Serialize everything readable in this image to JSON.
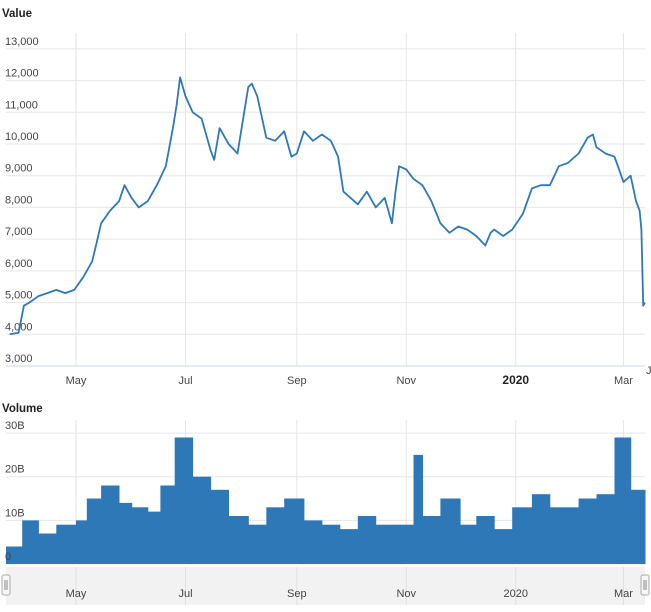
{
  "chart_data": [
    {
      "type": "line",
      "title": "Value",
      "ylim": [
        3000,
        13500
      ],
      "y_ticks": [
        "3,000",
        "4,000",
        "5,000",
        "6,000",
        "7,000",
        "8,000",
        "9,000",
        "10,000",
        "11,000",
        "12,000",
        "13,000"
      ],
      "x_ticks": [
        {
          "label": "May",
          "date": "2019-05-01"
        },
        {
          "label": "Jul",
          "date": "2019-07-01"
        },
        {
          "label": "Sep",
          "date": "2019-09-01"
        },
        {
          "label": "Nov",
          "date": "2019-11-01"
        },
        {
          "label": "2020",
          "date": "2020-01-01",
          "bold": true
        },
        {
          "label": "Mar",
          "date": "2020-03-01"
        }
      ],
      "xlim": [
        "2019-03-23",
        "2020-03-13"
      ],
      "x": [
        "2019-03-25",
        "2019-03-30",
        "2019-04-02",
        "2019-04-05",
        "2019-04-10",
        "2019-04-15",
        "2019-04-20",
        "2019-04-25",
        "2019-04-30",
        "2019-05-05",
        "2019-05-10",
        "2019-05-13",
        "2019-05-15",
        "2019-05-20",
        "2019-05-25",
        "2019-05-28",
        "2019-06-01",
        "2019-06-05",
        "2019-06-10",
        "2019-06-15",
        "2019-06-20",
        "2019-06-24",
        "2019-06-26",
        "2019-06-28",
        "2019-07-01",
        "2019-07-05",
        "2019-07-10",
        "2019-07-15",
        "2019-07-17",
        "2019-07-20",
        "2019-07-25",
        "2019-07-30",
        "2019-08-05",
        "2019-08-07",
        "2019-08-10",
        "2019-08-15",
        "2019-08-20",
        "2019-08-25",
        "2019-08-29",
        "2019-09-01",
        "2019-09-05",
        "2019-09-10",
        "2019-09-15",
        "2019-09-20",
        "2019-09-24",
        "2019-09-27",
        "2019-10-01",
        "2019-10-05",
        "2019-10-10",
        "2019-10-15",
        "2019-10-20",
        "2019-10-24",
        "2019-10-26",
        "2019-10-28",
        "2019-11-01",
        "2019-11-05",
        "2019-11-10",
        "2019-11-15",
        "2019-11-20",
        "2019-11-25",
        "2019-11-30",
        "2019-12-05",
        "2019-12-10",
        "2019-12-15",
        "2019-12-18",
        "2019-12-20",
        "2019-12-25",
        "2019-12-30",
        "2020-01-05",
        "2020-01-10",
        "2020-01-15",
        "2020-01-20",
        "2020-01-25",
        "2020-01-30",
        "2020-02-05",
        "2020-02-10",
        "2020-02-13",
        "2020-02-15",
        "2020-02-20",
        "2020-02-25",
        "2020-03-01",
        "2020-03-05",
        "2020-03-08",
        "2020-03-10",
        "2020-03-11",
        "2020-03-12",
        "2020-03-13"
      ],
      "series": [
        {
          "values": [
            4000,
            4050,
            4900,
            5000,
            5200,
            5300,
            5400,
            5300,
            5400,
            5800,
            6300,
            7000,
            7500,
            7900,
            8200,
            8700,
            8300,
            8000,
            8200,
            8700,
            9300,
            10500,
            11200,
            12100,
            11500,
            11000,
            10800,
            9800,
            9500,
            10500,
            10000,
            9700,
            11800,
            11900,
            11500,
            10200,
            10100,
            10400,
            9600,
            9700,
            10400,
            10100,
            10300,
            10100,
            9600,
            8500,
            8300,
            8100,
            8500,
            8000,
            8300,
            7500,
            8500,
            9300,
            9200,
            8900,
            8700,
            8200,
            7500,
            7200,
            7400,
            7300,
            7100,
            6800,
            7200,
            7300,
            7100,
            7300,
            7800,
            8600,
            8700,
            8700,
            9300,
            9400,
            9700,
            10200,
            10300,
            9900,
            9700,
            9600,
            8800,
            9000,
            8200,
            7900,
            7300,
            4900,
            5000
          ]
        }
      ]
    },
    {
      "type": "bar",
      "title": "Volume",
      "ylim": [
        0,
        33
      ],
      "y_ticks": [
        "0",
        "10B",
        "20B",
        "30B"
      ],
      "x_ticks": [
        {
          "label": "May",
          "date": "2019-05-01"
        },
        {
          "label": "Jul",
          "date": "2019-07-01"
        },
        {
          "label": "Sep",
          "date": "2019-09-01"
        },
        {
          "label": "Nov",
          "date": "2019-11-01"
        },
        {
          "label": "2020",
          "date": "2020-01-01"
        },
        {
          "label": "Mar",
          "date": "2020-03-01"
        }
      ],
      "unit": "B",
      "x": [
        "2019-03-20",
        "2019-04-01",
        "2019-04-10",
        "2019-04-20",
        "2019-05-01",
        "2019-05-07",
        "2019-05-15",
        "2019-05-25",
        "2019-06-01",
        "2019-06-10",
        "2019-06-17",
        "2019-06-25",
        "2019-07-05",
        "2019-07-15",
        "2019-07-25",
        "2019-08-05",
        "2019-08-15",
        "2019-08-25",
        "2019-09-05",
        "2019-09-15",
        "2019-09-25",
        "2019-10-05",
        "2019-10-15",
        "2019-10-25",
        "2019-11-05",
        "2019-11-10",
        "2019-11-20",
        "2019-12-01",
        "2019-12-10",
        "2019-12-20",
        "2019-12-30",
        "2020-01-10",
        "2020-01-20",
        "2020-01-30",
        "2020-02-05",
        "2020-02-15",
        "2020-02-25",
        "2020-03-05"
      ],
      "series": [
        {
          "values": [
            4,
            10,
            7,
            9,
            10,
            15,
            18,
            14,
            13,
            12,
            18,
            29,
            20,
            17,
            11,
            9,
            13,
            15,
            10,
            9,
            8,
            11,
            9,
            9,
            25,
            11,
            15,
            9,
            11,
            8,
            13,
            16,
            13,
            13,
            15,
            16,
            29,
            17
          ]
        }
      ]
    }
  ]
}
